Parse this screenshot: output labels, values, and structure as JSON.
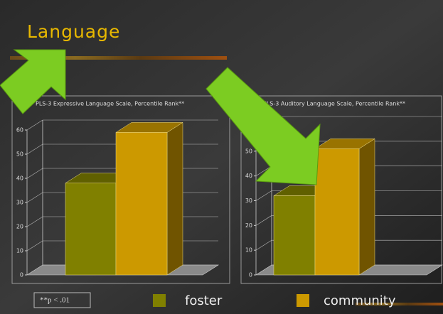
{
  "slide": {
    "title": "Language",
    "footnote": "**p < .01"
  },
  "legend": [
    {
      "name": "foster",
      "color": "#808000"
    },
    {
      "name": "community",
      "color": "#cc9900"
    }
  ],
  "chart_data": [
    {
      "type": "bar3d",
      "title": "PLS-3 Expressive Language Scale, Percentile Rank**",
      "values": [
        38,
        59
      ],
      "ylim": [
        0,
        60
      ],
      "yticks": [
        0,
        10,
        20,
        30,
        40,
        50,
        60
      ]
    },
    {
      "type": "bar3d",
      "title": "PLS-3 Auditory Language Scale, Percentile Rank**",
      "values": [
        32,
        51
      ],
      "ylim": [
        0,
        60
      ],
      "yticks": [
        0,
        10,
        20,
        30,
        40,
        50,
        60
      ]
    }
  ]
}
